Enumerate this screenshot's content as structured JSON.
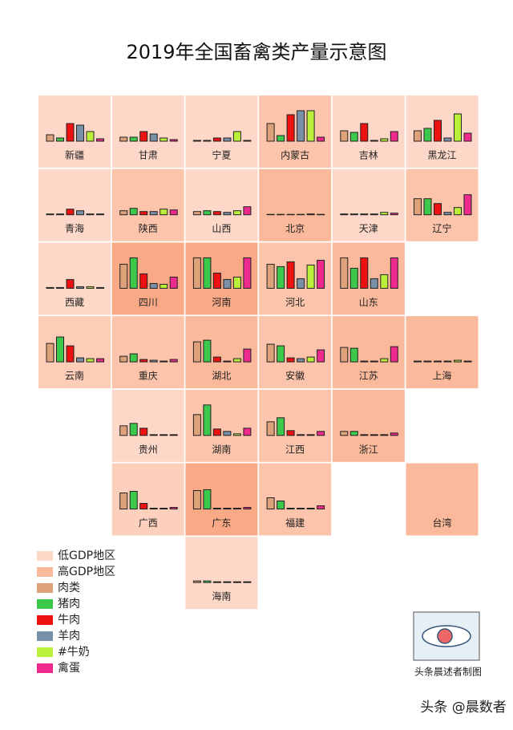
{
  "chart_data": {
    "type": "tilemap",
    "title": "2019年全国畜禽类产量示意图",
    "region_legend": [
      {
        "name": "低GDP地区",
        "color": "#fdd8c8"
      },
      {
        "name": "高GDP地区",
        "color": "#fbb99c"
      }
    ],
    "series": [
      {
        "name": "肉类",
        "color": "#dea27a"
      },
      {
        "name": "猪肉",
        "color": "#3cc84b"
      },
      {
        "name": "牛肉",
        "color": "#ee1111"
      },
      {
        "name": "羊肉",
        "color": "#7890a8"
      },
      {
        "name": "#牛奶",
        "color": "#bbf03a"
      },
      {
        "name": "禽蛋",
        "color": "#ee2a8f"
      }
    ],
    "tiles": [
      {
        "name": "新疆",
        "color": "#fdd8c8",
        "values": [
          8,
          4,
          22,
          20,
          12,
          3
        ]
      },
      {
        "name": "甘肃",
        "color": "#fdd8c8",
        "values": [
          5,
          5,
          12,
          9,
          4,
          2
        ]
      },
      {
        "name": "宁夏",
        "color": "#fdd8c8",
        "values": [
          1,
          1,
          4,
          4,
          12,
          1
        ]
      },
      {
        "name": "内蒙古",
        "color": "#fbc4ab",
        "values": [
          22,
          7,
          33,
          38,
          38,
          5
        ]
      },
      {
        "name": "吉林",
        "color": "#fdd8c8",
        "values": [
          13,
          11,
          22,
          1,
          3,
          12
        ]
      },
      {
        "name": "黑龙江",
        "color": "#fdd8c8",
        "values": [
          13,
          16,
          26,
          4,
          34,
          10
        ]
      },
      {
        "name": "青海",
        "color": "#fdd8c8",
        "values": [
          1,
          1,
          7,
          5,
          1,
          1
        ]
      },
      {
        "name": "陕西",
        "color": "#fbc4ab",
        "values": [
          5,
          8,
          4,
          4,
          7,
          6
        ]
      },
      {
        "name": "山西",
        "color": "#fdd8c8",
        "values": [
          4,
          5,
          4,
          3,
          5,
          10
        ]
      },
      {
        "name": "北京",
        "color": "#fbb99c",
        "values": [
          0.5,
          0.5,
          0.5,
          0.5,
          1,
          0.5
        ]
      },
      {
        "name": "天津",
        "color": "#fdd8c8",
        "values": [
          1,
          1,
          1,
          1,
          3,
          2
        ]
      },
      {
        "name": "辽宁",
        "color": "#fbc4ab",
        "values": [
          20,
          20,
          14,
          3,
          9,
          25
        ]
      },
      {
        "name": "西藏",
        "color": "#fdd8c8",
        "values": [
          1,
          1,
          11,
          2,
          2,
          1
        ]
      },
      {
        "name": "四川",
        "color": "#f9a985",
        "values": [
          30,
          38,
          18,
          6,
          5,
          14
        ]
      },
      {
        "name": "河南",
        "color": "#f9a985",
        "values": [
          38,
          38,
          19,
          11,
          14,
          38
        ]
      },
      {
        "name": "河北",
        "color": "#fbc4ab",
        "values": [
          30,
          27,
          33,
          12,
          29,
          35
        ]
      },
      {
        "name": "山东",
        "color": "#fbb99c",
        "values": [
          38,
          25,
          38,
          12,
          17,
          38
        ]
      },
      {
        "name": "云南",
        "color": "#fdcdb8",
        "values": [
          23,
          31,
          20,
          5,
          4,
          4
        ]
      },
      {
        "name": "重庆",
        "color": "#fbc4ab",
        "values": [
          7,
          10,
          3,
          2,
          1,
          3
        ]
      },
      {
        "name": "湖北",
        "color": "#fbb99c",
        "values": [
          25,
          27,
          6,
          1,
          4,
          16
        ]
      },
      {
        "name": "安徽",
        "color": "#fbc4ab",
        "values": [
          22,
          20,
          5,
          4,
          6,
          15
        ]
      },
      {
        "name": "江苏",
        "color": "#fbb99c",
        "values": [
          18,
          17,
          1,
          1,
          4,
          19
        ]
      },
      {
        "name": "上海",
        "color": "#fbb99c",
        "values": [
          1,
          1,
          1,
          1,
          2,
          1
        ]
      },
      {
        "name": "贵州",
        "color": "#fdd8c8",
        "values": [
          12,
          15,
          9,
          1,
          1,
          1
        ]
      },
      {
        "name": "湖南",
        "color": "#fbc4ab",
        "values": [
          26,
          38,
          8,
          5,
          2,
          9
        ]
      },
      {
        "name": "江西",
        "color": "#fbc4ab",
        "values": [
          17,
          22,
          6,
          1,
          1,
          5
        ]
      },
      {
        "name": "浙江",
        "color": "#fbb99c",
        "values": [
          5,
          5,
          1,
          1,
          1,
          3
        ]
      },
      {
        "name": "广西",
        "color": "#fdd0bd",
        "values": [
          20,
          22,
          7,
          1,
          1,
          2
        ]
      },
      {
        "name": "广东",
        "color": "#f9a985",
        "values": [
          23,
          24,
          1,
          1,
          1,
          2
        ]
      },
      {
        "name": "福建",
        "color": "#fbc4ab",
        "values": [
          14,
          10,
          1,
          1,
          1,
          4
        ]
      },
      {
        "name": "台湾",
        "color": "#fbb99c"
      },
      {
        "name": "海南",
        "color": "#fdd8c8",
        "values": [
          2,
          2,
          1,
          1,
          1,
          1
        ]
      }
    ],
    "credit": "头条晨述者制图",
    "watermark": "头条 @晨数者"
  }
}
